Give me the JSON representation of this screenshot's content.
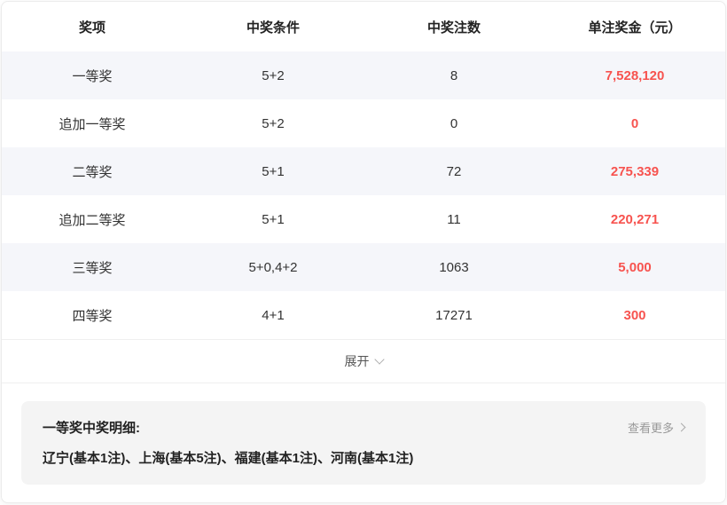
{
  "table": {
    "headers": [
      "奖项",
      "中奖条件",
      "中奖注数",
      "单注奖金（元）"
    ],
    "rows": [
      {
        "prize": "一等奖",
        "condition": "5+2",
        "count": "8",
        "amount": "7,528,120"
      },
      {
        "prize": "追加一等奖",
        "condition": "5+2",
        "count": "0",
        "amount": "0"
      },
      {
        "prize": "二等奖",
        "condition": "5+1",
        "count": "72",
        "amount": "275,339"
      },
      {
        "prize": "追加二等奖",
        "condition": "5+1",
        "count": "11",
        "amount": "220,271"
      },
      {
        "prize": "三等奖",
        "condition": "5+0,4+2",
        "count": "1063",
        "amount": "5,000"
      },
      {
        "prize": "四等奖",
        "condition": "4+1",
        "count": "17271",
        "amount": "300"
      }
    ],
    "expand_label": "展开"
  },
  "details": {
    "title": "一等奖中奖明细:",
    "more_label": "查看更多",
    "content": "辽宁(基本1注)、上海(基本5注)、福建(基本1注)、河南(基本1注)"
  },
  "colors": {
    "amount_red": "#f7534f",
    "stripe_bg": "#f5f6fa",
    "panel_bg": "#f4f4f4"
  },
  "icons": {
    "expand_chevron": "chevron-down",
    "more_chevron": "chevron-right"
  }
}
